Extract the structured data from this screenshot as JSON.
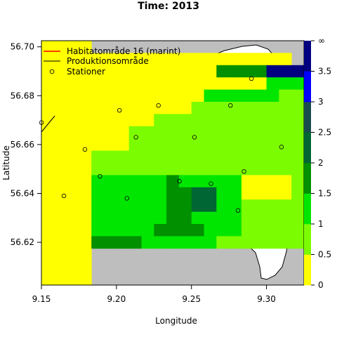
{
  "title": "Time: 2013",
  "chart_data": {
    "type": "heatmap",
    "title": "Time: 2013",
    "xlabel": "Longitude",
    "ylabel": "Latitude",
    "xlim": [
      9.15,
      9.325
    ],
    "ylim": [
      56.6025,
      56.7025
    ],
    "x_ticks": [
      "9.15",
      "9.20",
      "9.25",
      "9.30"
    ],
    "y_ticks": [
      "56.62",
      "56.64",
      "56.66",
      "56.68",
      "56.70"
    ],
    "colorbar": {
      "range": [
        0,
        4
      ],
      "labels": [
        "0",
        "0.5",
        "1",
        "1.5",
        "2",
        "2.5",
        "3",
        "3.5",
        "∞"
      ],
      "colors": [
        "#ffff00",
        "#7cfc00",
        "#00e600",
        "#009000",
        "#006633",
        "#194d4d",
        "#0000ff",
        "#000080"
      ]
    },
    "legend": {
      "position": "top-left",
      "entries": [
        {
          "label": "Habitatområde 16 (marint)",
          "color": "#ff0000",
          "kind": "line"
        },
        {
          "label": "Produktionsområde",
          "color": "#000000",
          "kind": "line"
        },
        {
          "label": "Stationer",
          "color": "#000000",
          "kind": "circle"
        }
      ]
    },
    "grid": {
      "lon_start": 9.15,
      "lat_top": 56.7025,
      "dlon": 0.008333,
      "dlat": 0.005,
      "rows": [
        "YYYY................",
        "YYYYYYYYYYYYYYYYYYYY",
        "YYYYYYYYYYYYYYCCCCNNNNN",
        "YYYYYYYYYYYYYYYYYYGGGGDBB",
        "YYYYYYYYYYYYYGGGGGGLLDDBB",
        "YYYYYYYYYYYYLLLLLLLLLDDDD",
        "YYYYYYYYYLLLLLLLLLLLLDDDN",
        "YYYYYYYLLLLLLLLLLLLLLBBNN",
        "YYYYYYYLLLLLLLLLLLLLLBBNN",
        "YYYYLLLLLLLLLLLLLLLLLBBNN",
        "YYYYLLLLLLLLLLLLLLLLLBBNN",
        "YYYYGGGGGGCGGGGGYYYYLLCNN",
        "YYYYGGGGGGCCTTGGYYYYLLCNN",
        "YYYYGGGGGGCCTTGGLLLLLLGGN",
        "YYYYGGGGGGCCGGGGLLLLLLCCN",
        "YYYYGGGGGCCCCGGGLLLLLLGGN",
        "YYYYCCCCGGGGGGLLLLLLLLGG.",
        "YYYY..................GG.",
        "YYYY..........................",
        "YYYY.........................."
      ]
    },
    "stations": [
      {
        "lon": 9.15,
        "lat": 56.669
      },
      {
        "lon": 9.179,
        "lat": 56.658
      },
      {
        "lon": 9.165,
        "lat": 56.639
      },
      {
        "lon": 9.189,
        "lat": 56.647
      },
      {
        "lon": 9.202,
        "lat": 56.674
      },
      {
        "lon": 9.213,
        "lat": 56.663
      },
      {
        "lon": 9.228,
        "lat": 56.676
      },
      {
        "lon": 9.252,
        "lat": 56.663
      },
      {
        "lon": 9.242,
        "lat": 56.645
      },
      {
        "lon": 9.263,
        "lat": 56.644
      },
      {
        "lon": 9.276,
        "lat": 56.676
      },
      {
        "lon": 9.29,
        "lat": 56.687
      },
      {
        "lon": 9.285,
        "lat": 56.649
      },
      {
        "lon": 9.281,
        "lat": 56.633
      },
      {
        "lon": 9.31,
        "lat": 56.659
      },
      {
        "lon": 9.207,
        "lat": 56.638
      }
    ]
  }
}
